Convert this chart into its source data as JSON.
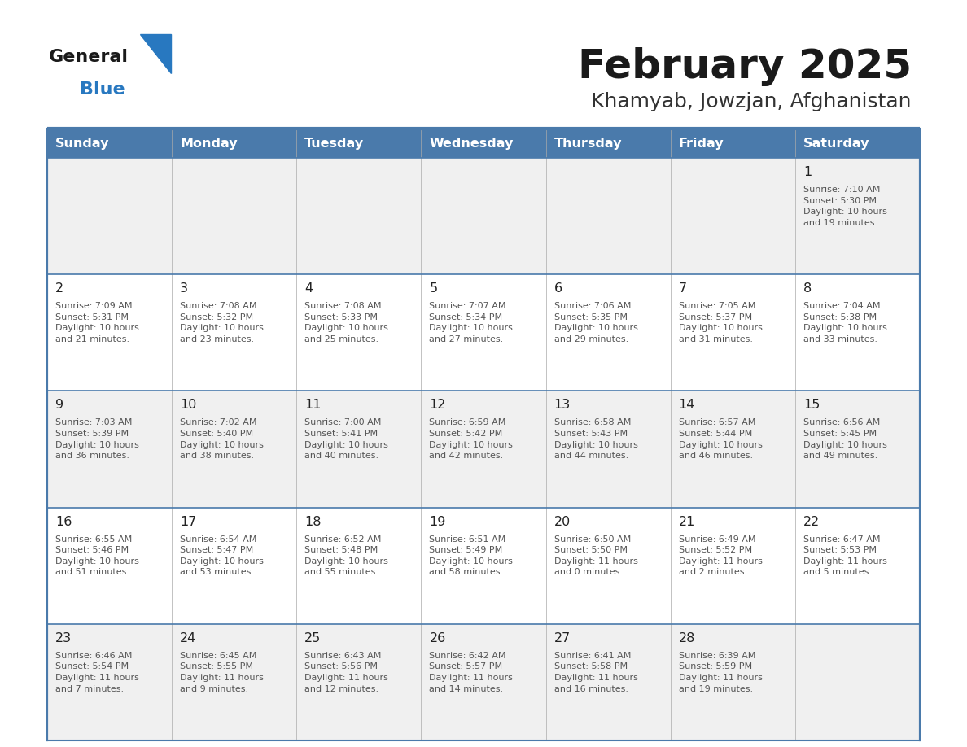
{
  "title": "February 2025",
  "subtitle": "Khamyab, Jowzjan, Afghanistan",
  "days_of_week": [
    "Sunday",
    "Monday",
    "Tuesday",
    "Wednesday",
    "Thursday",
    "Friday",
    "Saturday"
  ],
  "header_bg": "#4a7aab",
  "header_text": "#ffffff",
  "row0_bg": "#f0f0f0",
  "row1_bg": "#ffffff",
  "separator_color": "#4a7aab",
  "grid_color": "#aaaaaa",
  "day_num_color": "#222222",
  "info_color": "#555555",
  "title_color": "#1a1a1a",
  "subtitle_color": "#333333",
  "logo_general_color": "#1a1a1a",
  "logo_blue_color": "#2878c0",
  "logo_triangle_color": "#2878c0",
  "calendar_data": [
    [
      {
        "day": "",
        "info": ""
      },
      {
        "day": "",
        "info": ""
      },
      {
        "day": "",
        "info": ""
      },
      {
        "day": "",
        "info": ""
      },
      {
        "day": "",
        "info": ""
      },
      {
        "day": "",
        "info": ""
      },
      {
        "day": "1",
        "info": "Sunrise: 7:10 AM\nSunset: 5:30 PM\nDaylight: 10 hours\nand 19 minutes."
      }
    ],
    [
      {
        "day": "2",
        "info": "Sunrise: 7:09 AM\nSunset: 5:31 PM\nDaylight: 10 hours\nand 21 minutes."
      },
      {
        "day": "3",
        "info": "Sunrise: 7:08 AM\nSunset: 5:32 PM\nDaylight: 10 hours\nand 23 minutes."
      },
      {
        "day": "4",
        "info": "Sunrise: 7:08 AM\nSunset: 5:33 PM\nDaylight: 10 hours\nand 25 minutes."
      },
      {
        "day": "5",
        "info": "Sunrise: 7:07 AM\nSunset: 5:34 PM\nDaylight: 10 hours\nand 27 minutes."
      },
      {
        "day": "6",
        "info": "Sunrise: 7:06 AM\nSunset: 5:35 PM\nDaylight: 10 hours\nand 29 minutes."
      },
      {
        "day": "7",
        "info": "Sunrise: 7:05 AM\nSunset: 5:37 PM\nDaylight: 10 hours\nand 31 minutes."
      },
      {
        "day": "8",
        "info": "Sunrise: 7:04 AM\nSunset: 5:38 PM\nDaylight: 10 hours\nand 33 minutes."
      }
    ],
    [
      {
        "day": "9",
        "info": "Sunrise: 7:03 AM\nSunset: 5:39 PM\nDaylight: 10 hours\nand 36 minutes."
      },
      {
        "day": "10",
        "info": "Sunrise: 7:02 AM\nSunset: 5:40 PM\nDaylight: 10 hours\nand 38 minutes."
      },
      {
        "day": "11",
        "info": "Sunrise: 7:00 AM\nSunset: 5:41 PM\nDaylight: 10 hours\nand 40 minutes."
      },
      {
        "day": "12",
        "info": "Sunrise: 6:59 AM\nSunset: 5:42 PM\nDaylight: 10 hours\nand 42 minutes."
      },
      {
        "day": "13",
        "info": "Sunrise: 6:58 AM\nSunset: 5:43 PM\nDaylight: 10 hours\nand 44 minutes."
      },
      {
        "day": "14",
        "info": "Sunrise: 6:57 AM\nSunset: 5:44 PM\nDaylight: 10 hours\nand 46 minutes."
      },
      {
        "day": "15",
        "info": "Sunrise: 6:56 AM\nSunset: 5:45 PM\nDaylight: 10 hours\nand 49 minutes."
      }
    ],
    [
      {
        "day": "16",
        "info": "Sunrise: 6:55 AM\nSunset: 5:46 PM\nDaylight: 10 hours\nand 51 minutes."
      },
      {
        "day": "17",
        "info": "Sunrise: 6:54 AM\nSunset: 5:47 PM\nDaylight: 10 hours\nand 53 minutes."
      },
      {
        "day": "18",
        "info": "Sunrise: 6:52 AM\nSunset: 5:48 PM\nDaylight: 10 hours\nand 55 minutes."
      },
      {
        "day": "19",
        "info": "Sunrise: 6:51 AM\nSunset: 5:49 PM\nDaylight: 10 hours\nand 58 minutes."
      },
      {
        "day": "20",
        "info": "Sunrise: 6:50 AM\nSunset: 5:50 PM\nDaylight: 11 hours\nand 0 minutes."
      },
      {
        "day": "21",
        "info": "Sunrise: 6:49 AM\nSunset: 5:52 PM\nDaylight: 11 hours\nand 2 minutes."
      },
      {
        "day": "22",
        "info": "Sunrise: 6:47 AM\nSunset: 5:53 PM\nDaylight: 11 hours\nand 5 minutes."
      }
    ],
    [
      {
        "day": "23",
        "info": "Sunrise: 6:46 AM\nSunset: 5:54 PM\nDaylight: 11 hours\nand 7 minutes."
      },
      {
        "day": "24",
        "info": "Sunrise: 6:45 AM\nSunset: 5:55 PM\nDaylight: 11 hours\nand 9 minutes."
      },
      {
        "day": "25",
        "info": "Sunrise: 6:43 AM\nSunset: 5:56 PM\nDaylight: 11 hours\nand 12 minutes."
      },
      {
        "day": "26",
        "info": "Sunrise: 6:42 AM\nSunset: 5:57 PM\nDaylight: 11 hours\nand 14 minutes."
      },
      {
        "day": "27",
        "info": "Sunrise: 6:41 AM\nSunset: 5:58 PM\nDaylight: 11 hours\nand 16 minutes."
      },
      {
        "day": "28",
        "info": "Sunrise: 6:39 AM\nSunset: 5:59 PM\nDaylight: 11 hours\nand 19 minutes."
      },
      {
        "day": "",
        "info": ""
      }
    ]
  ]
}
